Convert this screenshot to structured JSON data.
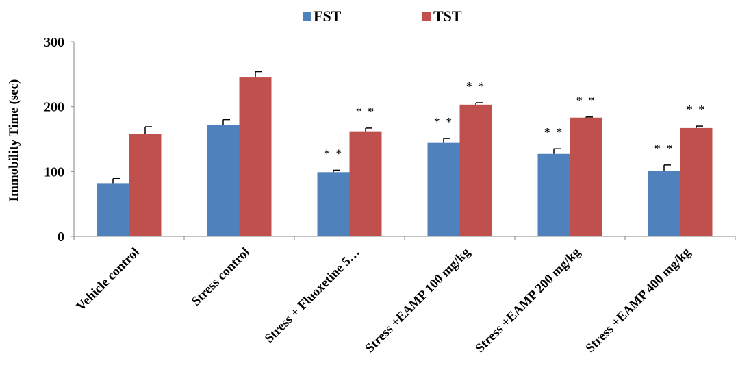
{
  "chart_data": {
    "type": "bar",
    "categories": [
      "Vehicle control",
      "Stress control",
      "Stress + Fluoxetine 5…",
      "Stress +EAMP 100 mg/kg",
      "Stress +EAMP 200 mg/kg",
      "Stress +EAMP 400 mg/kg"
    ],
    "series": [
      {
        "name": "FST",
        "color": "#4f81bd",
        "values": [
          82,
          172,
          99,
          144,
          127,
          101
        ],
        "errors": [
          7,
          8,
          3,
          7,
          8,
          9
        ],
        "annotations": [
          "",
          "",
          "**",
          "**",
          "**",
          "**"
        ]
      },
      {
        "name": "TST",
        "color": "#c0504d",
        "values": [
          158,
          245,
          162,
          203,
          183,
          167
        ],
        "errors": [
          11,
          9,
          5,
          3,
          1,
          3
        ],
        "annotations": [
          "",
          "",
          "**",
          "**",
          "**",
          "**"
        ]
      }
    ],
    "ylabel": "Immobility Time (sec)",
    "xlabel": "",
    "ylim": [
      0,
      300
    ],
    "yticks": [
      0,
      100,
      200,
      300
    ],
    "legend_position": "top-center",
    "grid": false
  }
}
